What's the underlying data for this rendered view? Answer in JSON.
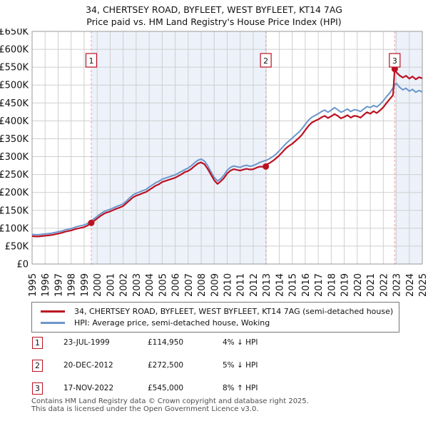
{
  "title": "34, CHERTSEY ROAD, BYFLEET, WEST BYFLEET, KT14 7AG",
  "subtitle": "Price paid vs. HM Land Registry's House Price Index (HPI)",
  "colors": {
    "property_line": "#bb1122",
    "hpi_line": "#6b96c9",
    "dashed_marker_line": "#f19999",
    "shaded_region": "#ecf1fa",
    "grid": "#cfcfcf",
    "plot_border": "#999999",
    "footer_text": "#4d4d4d"
  },
  "chart_data": {
    "type": "line",
    "title": "Price paid vs. HM Land Registry's House Price Index (HPI)",
    "xlabel": "",
    "ylabel": "",
    "xlim": [
      1995,
      2025
    ],
    "ylim": [
      0,
      650000
    ],
    "grid": true,
    "legend_position": "below",
    "x_ticks": [
      1995,
      1996,
      1997,
      1998,
      1999,
      2000,
      2001,
      2002,
      2003,
      2004,
      2005,
      2006,
      2007,
      2008,
      2009,
      2010,
      2011,
      2012,
      2013,
      2014,
      2015,
      2016,
      2017,
      2018,
      2019,
      2020,
      2021,
      2022,
      2023,
      2024,
      2025
    ],
    "y_ticks": [
      "£0",
      "£50K",
      "£100K",
      "£150K",
      "£200K",
      "£250K",
      "£300K",
      "£350K",
      "£400K",
      "£450K",
      "£500K",
      "£550K",
      "£600K",
      "£650K"
    ],
    "x_start": 1995,
    "x_step": 0.25,
    "values_scale": 1000,
    "series": [
      {
        "name": "34, CHERTSEY ROAD, BYFLEET, WEST BYFLEET, KT14 7AG (semi-detached house)",
        "color": "#bb1122",
        "values_k": [
          78,
          77,
          77,
          78,
          79,
          80,
          81,
          83,
          85,
          87,
          90,
          92,
          94,
          97,
          99,
          101,
          103,
          107,
          114,
          120,
          127,
          134,
          140,
          144,
          147,
          151,
          155,
          158,
          162,
          170,
          178,
          186,
          191,
          194,
          198,
          201,
          207,
          213,
          219,
          223,
          229,
          232,
          235,
          238,
          241,
          246,
          251,
          257,
          260,
          266,
          274,
          281,
          284,
          279,
          266,
          250,
          234,
          224,
          231,
          240,
          253,
          261,
          265,
          263,
          261,
          264,
          266,
          264,
          265,
          269,
          272,
          272,
          278,
          282,
          288,
          295,
          303,
          313,
          323,
          330,
          336,
          344,
          352,
          361,
          374,
          386,
          395,
          400,
          404,
          410,
          414,
          408,
          413,
          419,
          414,
          407,
          411,
          416,
          409,
          414,
          413,
          409,
          417,
          424,
          420,
          427,
          422,
          429,
          438,
          450,
          461,
          472,
          536,
          527,
          521,
          526,
          518,
          524,
          516,
          522,
          519
        ]
      },
      {
        "name": "HPI: Average price, semi-detached house, Woking",
        "color": "#6b96c9",
        "values_k": [
          83,
          82,
          82,
          83,
          84,
          85,
          86,
          88,
          90,
          92,
          95,
          97,
          99,
          102,
          105,
          107,
          109,
          113,
          120,
          126,
          133,
          140,
          146,
          150,
          153,
          157,
          161,
          164,
          168,
          176,
          185,
          193,
          198,
          201,
          205,
          208,
          215,
          221,
          227,
          231,
          237,
          240,
          243,
          246,
          249,
          254,
          259,
          264,
          268,
          275,
          283,
          290,
          293,
          288,
          275,
          258,
          242,
          232,
          238,
          248,
          262,
          270,
          274,
          272,
          270,
          274,
          276,
          273,
          275,
          279,
          284,
          287,
          290,
          294,
          300,
          307,
          316,
          326,
          336,
          344,
          352,
          360,
          368,
          378,
          390,
          402,
          410,
          415,
          420,
          426,
          430,
          424,
          430,
          437,
          431,
          424,
          428,
          433,
          426,
          431,
          430,
          426,
          433,
          440,
          437,
          443,
          439,
          446,
          456,
          468,
          478,
          492,
          505,
          494,
          487,
          491,
          483,
          488,
          480,
          485,
          481
        ]
      }
    ],
    "sales": [
      {
        "label": "1",
        "x": 1999.55,
        "price": 114950,
        "date": "23-JUL-1999",
        "vs_hpi": "4% ↓ HPI"
      },
      {
        "label": "2",
        "x": 2012.97,
        "price": 272500,
        "date": "20-DEC-2012",
        "vs_hpi": "5% ↓ HPI"
      },
      {
        "label": "3",
        "x": 2022.88,
        "price": 545000,
        "date": "17-NOV-2022",
        "vs_hpi": "8% ↑ HPI"
      }
    ],
    "shaded_regions": [
      [
        1999.55,
        2012.97
      ],
      [
        2022.88,
        2025.0
      ]
    ]
  },
  "table": {
    "rows": [
      {
        "n": "1",
        "date": "23-JUL-1999",
        "price": "£114,950",
        "delta": "4% ↓ HPI"
      },
      {
        "n": "2",
        "date": "20-DEC-2012",
        "price": "£272,500",
        "delta": "5% ↓ HPI"
      },
      {
        "n": "3",
        "date": "17-NOV-2022",
        "price": "£545,000",
        "delta": "8% ↑ HPI"
      }
    ]
  },
  "footer": {
    "line1": "Contains HM Land Registry data © Crown copyright and database right 2025.",
    "line2": "This data is licensed under the Open Government Licence v3.0."
  }
}
